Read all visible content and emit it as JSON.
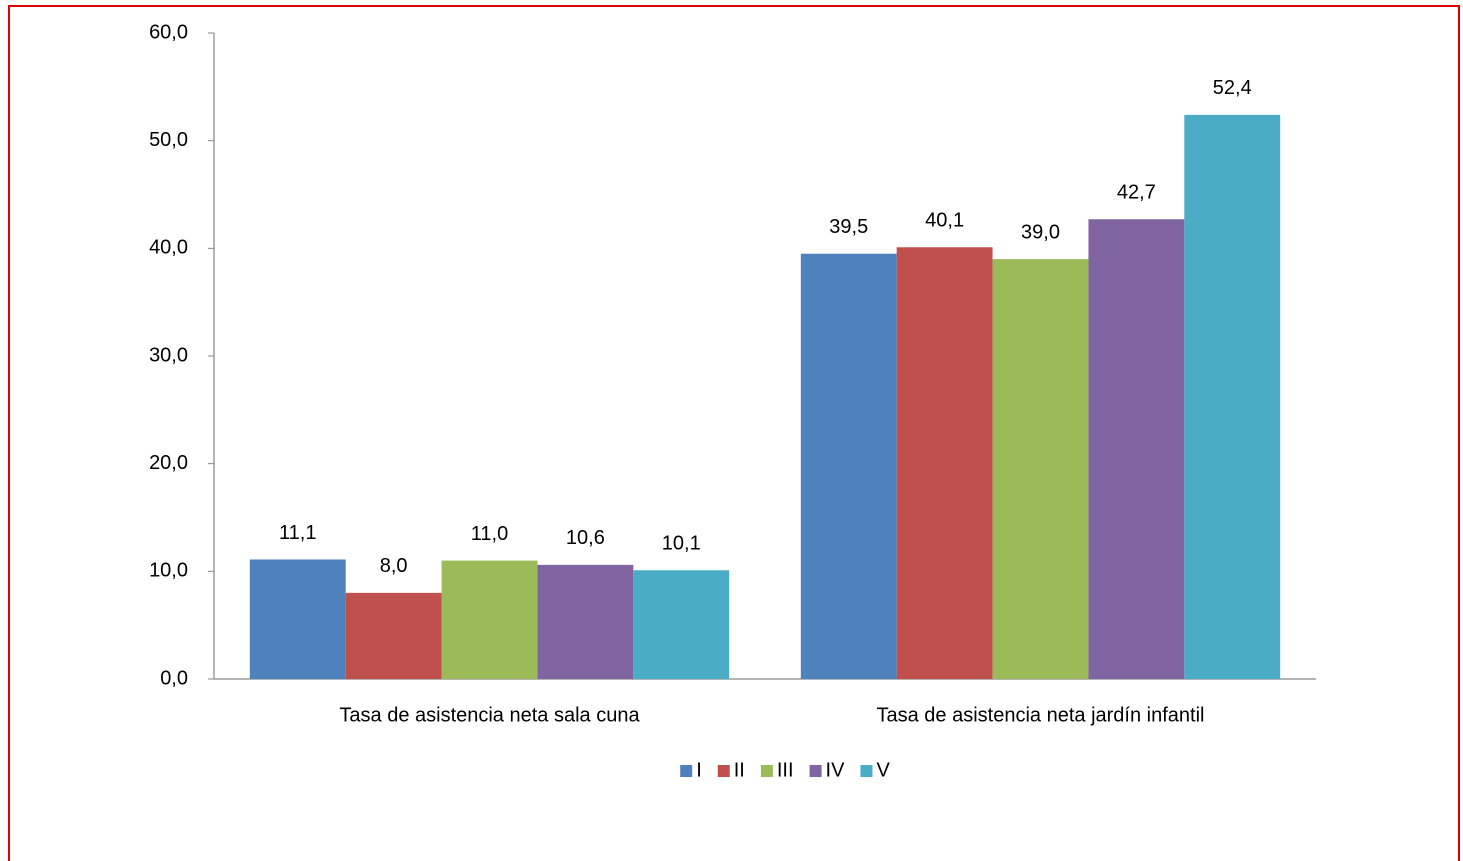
{
  "chart_data": {
    "type": "bar",
    "categories": [
      "Tasa de asistencia neta sala cuna",
      "Tasa de asistencia neta jardín infantil"
    ],
    "series": [
      {
        "name": "I",
        "color": "#4f81bd",
        "values": [
          11.1,
          39.5
        ],
        "value_labels": [
          "11,1",
          "39,5"
        ]
      },
      {
        "name": "II",
        "color": "#c0504d",
        "values": [
          8.0,
          40.1
        ],
        "value_labels": [
          "8,0",
          "40,1"
        ]
      },
      {
        "name": "III",
        "color": "#9bbb59",
        "values": [
          11.0,
          39.0
        ],
        "value_labels": [
          "11,0",
          "39,0"
        ]
      },
      {
        "name": "IV",
        "color": "#8064a2",
        "values": [
          10.6,
          42.7
        ],
        "value_labels": [
          "10,6",
          "42,7"
        ]
      },
      {
        "name": "V",
        "color": "#4bacc6",
        "values": [
          10.1,
          52.4
        ],
        "value_labels": [
          "10,1",
          "52,4"
        ]
      }
    ],
    "ylim": [
      0,
      60
    ],
    "yticks": [
      {
        "value": 0,
        "label": "0,0"
      },
      {
        "value": 10,
        "label": "10,0"
      },
      {
        "value": 20,
        "label": "20,0"
      },
      {
        "value": 30,
        "label": "30,0"
      },
      {
        "value": 40,
        "label": "40,0"
      },
      {
        "value": 50,
        "label": "50,0"
      },
      {
        "value": 60,
        "label": "60,0"
      }
    ],
    "grid": false,
    "legend": "bottom"
  }
}
